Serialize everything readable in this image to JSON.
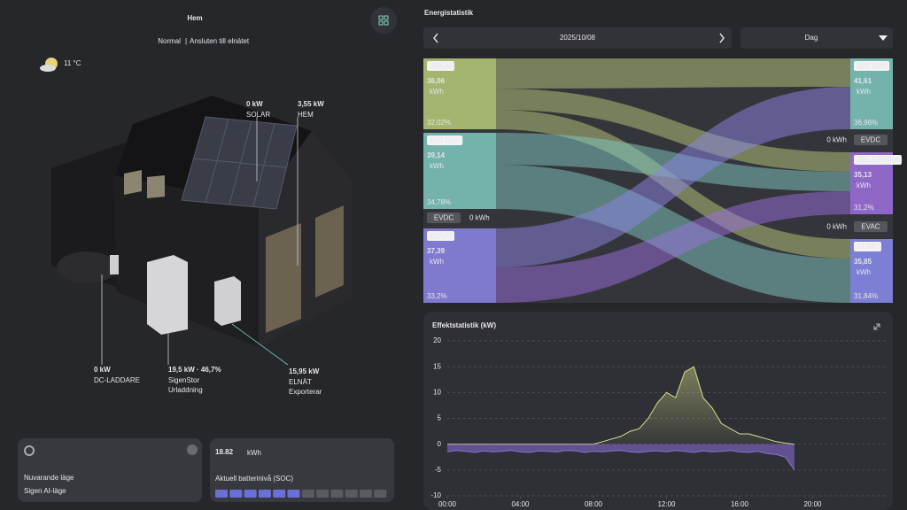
{
  "home": {
    "title": "Hem",
    "status": "Normal",
    "connection": "Ansluten till elnätet",
    "temperature": "11 °C",
    "flows": [
      {
        "value": "0 kW",
        "label": "SOLAR"
      },
      {
        "value": "3,55 kW",
        "label": "HEM"
      },
      {
        "value": "0 kW",
        "label": "DC-LADDARE"
      },
      {
        "value": "19,5 kW · 46,7%",
        "label": "SigenStor",
        "status": "Urladdning"
      },
      {
        "value": "15,95 kW",
        "label": "ELNÄT",
        "status": "Exporterar"
      }
    ]
  },
  "mode_card": {
    "label": "Nuvarande läge",
    "value": "Sigen AI-läge"
  },
  "battery_card": {
    "value": "18.82",
    "unit": "kWh",
    "label": "Aktuell batterinivå (SOC)"
  },
  "energy": {
    "title": "Energistatistik",
    "date": "2025/10/08",
    "period": "Dag",
    "sources": [
      {
        "label": "SOLAR",
        "value": "36,06",
        "unit": "kWh",
        "share": "32,02%"
      },
      {
        "label": "BATTERI",
        "value": "39,14",
        "unit": "kWh",
        "share": "34,78%"
      },
      {
        "label": "EVDC",
        "amount": "0 kWh"
      },
      {
        "label": "ELNÄT",
        "value": "37,39",
        "unit": "kWh",
        "share": "33,2%"
      }
    ],
    "sinks": [
      {
        "label": "BATTERI",
        "value": "41,61",
        "unit": "kWh",
        "share": "36,96%"
      },
      {
        "label": "EVDC",
        "amount": "0 kWh"
      },
      {
        "label": "BELASTNING",
        "value": "35,13",
        "unit": "kWh",
        "share": "31,2%"
      },
      {
        "label": "EVAC",
        "amount": "0 kWh"
      },
      {
        "label": "ELNÄT",
        "value": "35,85",
        "unit": "kWh",
        "share": "31,84%"
      }
    ]
  },
  "chart_data": {
    "type": "line",
    "title": "Effektstatistik (kW)",
    "x": [
      0,
      0.5,
      1,
      1.5,
      2,
      2.5,
      3,
      3.5,
      4,
      4.5,
      5,
      5.5,
      6,
      6.5,
      7,
      7.5,
      8,
      8.5,
      9,
      9.5,
      10,
      10.5,
      11,
      11.5,
      12,
      12.5,
      13,
      13.5,
      14,
      14.5,
      15,
      15.5,
      16,
      16.5,
      17,
      17.5,
      18,
      18.5,
      19
    ],
    "series": [
      {
        "color": "#d9de8c",
        "values": [
          0,
          0,
          0,
          0,
          0,
          0,
          0,
          0,
          0,
          0,
          0,
          0,
          0,
          0,
          0,
          0,
          0,
          0.5,
          1,
          1.5,
          2.5,
          3,
          5,
          8,
          10,
          9,
          14,
          15,
          9,
          7,
          4,
          3,
          2,
          2,
          1.5,
          1,
          0.5,
          0.2,
          0
        ]
      },
      {
        "color": "#8b6fd8",
        "values": [
          -1.5,
          -1.2,
          -1.4,
          -1.6,
          -1.3,
          -1.5,
          -1.4,
          -1.2,
          -1.5,
          -1.6,
          -1.3,
          -1.4,
          -1.5,
          -1.2,
          -1.3,
          -1.6,
          -1.4,
          -1.5,
          -1.3,
          -1.2,
          -1.5,
          -1.6,
          -1.4,
          -1.3,
          -1.5,
          -1.2,
          -1.4,
          -1.6,
          -1.3,
          -1.5,
          -1.4,
          -1.2,
          -1.5,
          -1.6,
          -1.4,
          -1.8,
          -2,
          -2.5,
          -5
        ]
      }
    ],
    "xlim": [
      0,
      24
    ],
    "xticks": [
      {
        "value": 0,
        "label": "00:00"
      },
      {
        "value": 4,
        "label": "04:00"
      },
      {
        "value": 8,
        "label": "08:00"
      },
      {
        "value": 12,
        "label": "12:00"
      },
      {
        "value": 16,
        "label": "16:00"
      },
      {
        "value": 20,
        "label": "20:00"
      }
    ],
    "ylim": [
      -10,
      20
    ],
    "yticks": [
      -10,
      -5,
      0,
      5,
      10,
      15,
      20
    ],
    "grid": true
  }
}
